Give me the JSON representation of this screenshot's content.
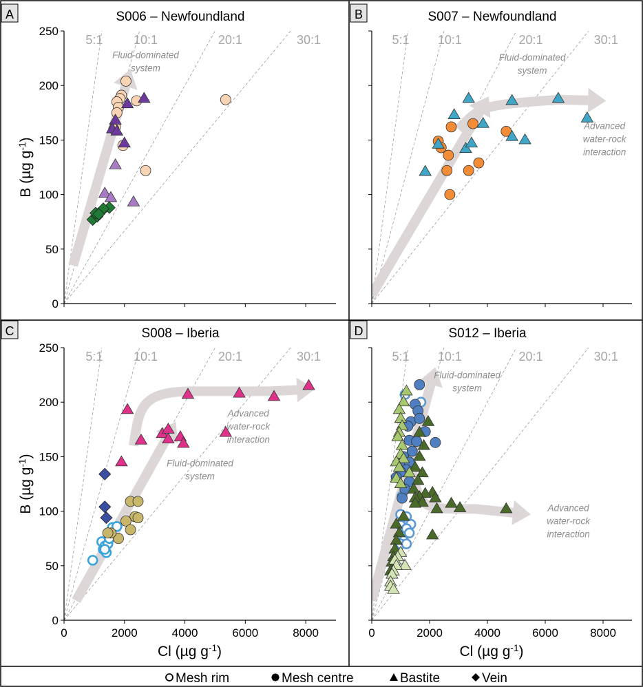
{
  "legend": [
    {
      "symbol": "open-circle",
      "label": "Mesh rim"
    },
    {
      "symbol": "filled-circle",
      "label": "Mesh centre"
    },
    {
      "symbol": "triangle",
      "label": "Bastite"
    },
    {
      "symbol": "diamond",
      "label": "Vein"
    }
  ],
  "ratio_labels": [
    "5:1",
    "10:1",
    "20:1",
    "30:1"
  ],
  "colors": {
    "s006_rim": "#f9d4b4",
    "s006_bastite_dark": "#6b3a9c",
    "s006_bastite_light": "#a87bc4",
    "s006_vein": "#1e7a34",
    "s007_rim": "#f28c36",
    "s007_bastite": "#3fa6c8",
    "s008_rim_open": "#3aa3d9",
    "s008_centre": "#c8b66a",
    "s008_bastite": "#e0318a",
    "s008_vein": "#3a4fa0",
    "s012_rim_open": "#5a9ad4",
    "s012_centre": "#4f7fc0",
    "s012_bastite_dark": "#4a6a2a",
    "s012_bastite_light": "#a8c870",
    "s012_bastite_pale": "#d4e4b4",
    "arrow": "#dcd6d6"
  },
  "chart_data": [
    {
      "panel": "A",
      "type": "scatter",
      "title": "S006 – Newfoundland",
      "xlabel": "",
      "ylabel": "B (µg g⁻¹)",
      "xlim": [
        0,
        9000
      ],
      "ylim": [
        0,
        250
      ],
      "xticks": [],
      "yticks": [
        "0",
        "50",
        "100",
        "150",
        "200",
        "250"
      ],
      "ratio_lines": [
        5,
        10,
        20,
        30
      ],
      "annotations": [
        "Fluid-dominated",
        "system"
      ],
      "series": [
        {
          "marker": "circle",
          "color": "s006_rim",
          "points": [
            [
              2050,
              204
            ],
            [
              1900,
              191
            ],
            [
              1850,
              188
            ],
            [
              1750,
              185
            ],
            [
              2400,
              186
            ],
            [
              1800,
              180
            ],
            [
              1750,
              175
            ],
            [
              1700,
              162
            ],
            [
              1650,
              160
            ],
            [
              2700,
              122
            ],
            [
              5350,
              187
            ],
            [
              1950,
              145
            ]
          ]
        },
        {
          "marker": "triangle",
          "color": "s006_bastite_dark",
          "points": [
            [
              2650,
              188
            ],
            [
              2100,
              183
            ],
            [
              1700,
              168
            ],
            [
              1600,
              160
            ],
            [
              1750,
              158
            ],
            [
              2000,
              147
            ]
          ]
        },
        {
          "marker": "triangle",
          "color": "s006_bastite_light",
          "points": [
            [
              1700,
              127
            ],
            [
              1350,
              101
            ],
            [
              1550,
              97
            ],
            [
              2300,
              93
            ]
          ]
        },
        {
          "marker": "diamond",
          "color": "s006_vein",
          "points": [
            [
              950,
              77
            ],
            [
              1100,
              80
            ],
            [
              1050,
              83
            ],
            [
              1250,
              85
            ],
            [
              1500,
              88
            ],
            [
              1300,
              87
            ],
            [
              1150,
              82
            ]
          ]
        }
      ]
    },
    {
      "panel": "B",
      "type": "scatter",
      "title": "S007 – Newfoundland",
      "xlabel": "",
      "ylabel": "",
      "xlim": [
        0,
        9000
      ],
      "ylim": [
        0,
        250
      ],
      "xticks": [],
      "yticks": [],
      "ratio_lines": [
        5,
        10,
        20,
        30
      ],
      "annotations": [
        "Fluid-dominated",
        "system",
        "Advanced",
        "water-rock",
        "interaction"
      ],
      "series": [
        {
          "marker": "circle",
          "color": "s007_rim",
          "points": [
            [
              2300,
              149
            ],
            [
              2400,
              143
            ],
            [
              2750,
              162
            ],
            [
              2650,
              136
            ],
            [
              2600,
              122
            ],
            [
              3500,
              165
            ],
            [
              3350,
              122
            ],
            [
              3700,
              129
            ],
            [
              4650,
              158
            ],
            [
              2700,
              100
            ]
          ]
        },
        {
          "marker": "triangle",
          "color": "s007_bastite",
          "points": [
            [
              3350,
              188
            ],
            [
              4850,
              186
            ],
            [
              6450,
              188
            ],
            [
              2850,
              173
            ],
            [
              3850,
              165
            ],
            [
              2300,
              146
            ],
            [
              3250,
              142
            ],
            [
              3450,
              147
            ],
            [
              4850,
              153
            ],
            [
              5300,
              150
            ],
            [
              1850,
              121
            ],
            [
              7450,
              170
            ]
          ]
        }
      ]
    },
    {
      "panel": "C",
      "type": "scatter",
      "title": "S008 – Iberia",
      "xlabel": "Cl (µg g⁻¹)",
      "ylabel": "B (µg g⁻¹)",
      "xlim": [
        0,
        9000
      ],
      "ylim": [
        0,
        250
      ],
      "xticks": [
        "0",
        "2000",
        "4000",
        "6000",
        "8000"
      ],
      "yticks": [
        "0",
        "50",
        "100",
        "150",
        "200",
        "250"
      ],
      "ratio_lines": [
        5,
        10,
        20,
        30
      ],
      "annotations": [
        "Fluid-dominated",
        "system",
        "Advanced",
        "water-rock",
        "interaction"
      ],
      "series": [
        {
          "marker": "circle-open",
          "color": "s008_rim_open",
          "points": [
            [
              950,
              55
            ],
            [
              1300,
              65
            ],
            [
              1250,
              72
            ],
            [
              1350,
              68
            ],
            [
              1450,
              70
            ],
            [
              1500,
              75
            ],
            [
              1600,
              85
            ],
            [
              1750,
              86
            ],
            [
              1550,
              80
            ],
            [
              1400,
              62
            ],
            [
              1350,
              65
            ]
          ]
        },
        {
          "marker": "circle",
          "color": "s008_centre",
          "points": [
            [
              2200,
              109
            ],
            [
              2450,
              109
            ],
            [
              2350,
              95
            ],
            [
              2450,
              94
            ],
            [
              2050,
              91
            ],
            [
              2200,
              83
            ],
            [
              1800,
              75
            ],
            [
              1550,
              80
            ],
            [
              1450,
              80
            ]
          ]
        },
        {
          "marker": "triangle",
          "color": "s008_bastite",
          "points": [
            [
              8100,
              215
            ],
            [
              6950,
              205
            ],
            [
              5800,
              208
            ],
            [
              4100,
              207
            ],
            [
              2100,
              193
            ],
            [
              3250,
              171
            ],
            [
              3450,
              175
            ],
            [
              3850,
              168
            ],
            [
              3450,
              166
            ],
            [
              3950,
              162
            ],
            [
              2550,
              165
            ],
            [
              5350,
              172
            ],
            [
              1900,
              145
            ]
          ]
        },
        {
          "marker": "diamond",
          "color": "s008_vein",
          "points": [
            [
              1350,
              134
            ],
            [
              1350,
              104
            ],
            [
              1400,
              94
            ]
          ]
        }
      ]
    },
    {
      "panel": "D",
      "type": "scatter",
      "title": "S012 – Iberia",
      "xlabel": "Cl (µg g⁻¹)",
      "ylabel": "",
      "xlim": [
        0,
        9000
      ],
      "ylim": [
        0,
        250
      ],
      "xticks": [
        "0",
        "2000",
        "4000",
        "6000",
        "8000"
      ],
      "yticks": [],
      "ratio_lines": [
        5,
        10,
        20,
        30
      ],
      "annotations": [
        "Fluid-dominated",
        "system",
        "Advanced",
        "water-rock",
        "interaction"
      ],
      "series": [
        {
          "marker": "circle-open",
          "color": "s012_rim_open",
          "points": [
            [
              1700,
              200
            ],
            [
              1150,
              207
            ],
            [
              1050,
              114
            ],
            [
              1000,
              97
            ],
            [
              1200,
              95
            ],
            [
              1100,
              90
            ],
            [
              1250,
              88
            ],
            [
              1350,
              88
            ],
            [
              1000,
              87
            ],
            [
              1200,
              84
            ],
            [
              1300,
              80
            ],
            [
              1100,
              73
            ],
            [
              1000,
              70
            ],
            [
              1200,
              70
            ]
          ]
        },
        {
          "marker": "circle",
          "color": "s012_centre",
          "points": [
            [
              1650,
              216
            ],
            [
              1500,
              198
            ],
            [
              1600,
              192
            ],
            [
              1350,
              182
            ],
            [
              1650,
              185
            ],
            [
              1250,
              178
            ],
            [
              1850,
              173
            ],
            [
              1300,
              165
            ],
            [
              1550,
              164
            ],
            [
              2200,
              163
            ],
            [
              1400,
              155
            ],
            [
              1100,
              150
            ],
            [
              1150,
              143
            ],
            [
              1300,
              145
            ],
            [
              1200,
              138
            ],
            [
              1000,
              136
            ],
            [
              850,
              131
            ],
            [
              1300,
              127
            ],
            [
              1150,
              120
            ],
            [
              1050,
              112
            ]
          ]
        },
        {
          "marker": "triangle",
          "color": "s012_bastite_dark",
          "points": [
            [
              1950,
              182
            ],
            [
              1650,
              172
            ],
            [
              1800,
              160
            ],
            [
              1650,
              150
            ],
            [
              1500,
              140
            ],
            [
              1750,
              135
            ],
            [
              1600,
              128
            ],
            [
              1450,
              120
            ],
            [
              2100,
              117
            ],
            [
              1850,
              116
            ],
            [
              1650,
              113
            ],
            [
              1500,
              112
            ],
            [
              1750,
              108
            ],
            [
              2200,
              112
            ],
            [
              2250,
              102
            ],
            [
              2750,
              107
            ],
            [
              3050,
              103
            ],
            [
              4650,
              102
            ],
            [
              1500,
              107
            ],
            [
              1100,
              95
            ],
            [
              850,
              88
            ],
            [
              950,
              80
            ],
            [
              850,
              73
            ],
            [
              800,
              65
            ],
            [
              2100,
              78
            ],
            [
              750,
              58
            ],
            [
              700,
              53
            ],
            [
              650,
              45
            ]
          ]
        },
        {
          "marker": "triangle",
          "color": "s012_bastite_light",
          "points": [
            [
              1200,
              210
            ],
            [
              1100,
              200
            ],
            [
              950,
              193
            ],
            [
              1000,
              185
            ],
            [
              1050,
              178
            ],
            [
              950,
              172
            ],
            [
              900,
              168
            ],
            [
              1050,
              160
            ],
            [
              1000,
              152
            ],
            [
              1100,
              148
            ],
            [
              850,
              145
            ],
            [
              950,
              140
            ],
            [
              850,
              130
            ],
            [
              1000,
              125
            ],
            [
              1300,
              135
            ]
          ]
        },
        {
          "marker": "triangle",
          "color": "s012_bastite_pale",
          "points": [
            [
              1000,
              62
            ],
            [
              900,
              58
            ],
            [
              800,
              55
            ],
            [
              1150,
              50
            ],
            [
              850,
              50
            ],
            [
              750,
              45
            ],
            [
              700,
              42
            ],
            [
              650,
              35
            ],
            [
              650,
              31
            ],
            [
              750,
              28
            ]
          ]
        }
      ]
    }
  ]
}
